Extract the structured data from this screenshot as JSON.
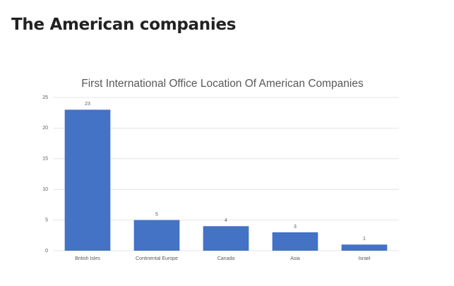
{
  "heading": "The American companies",
  "chart_data": {
    "type": "bar",
    "title": "First International Office Location Of American Companies",
    "categories": [
      "British Isles",
      "Continental Europe",
      "Canada",
      "Asia",
      "Israel"
    ],
    "values": [
      23,
      5,
      4,
      3,
      1
    ],
    "color": "#4472c4",
    "ylim": [
      0,
      25
    ],
    "yticks": [
      0,
      5,
      10,
      15,
      20,
      25
    ],
    "grid": true,
    "data_labels": true
  }
}
